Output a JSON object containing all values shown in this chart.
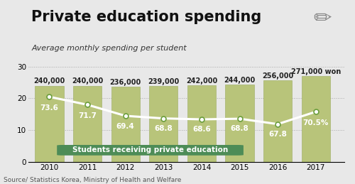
{
  "years": [
    2010,
    2011,
    2012,
    2013,
    2014,
    2015,
    2016,
    2017
  ],
  "bar_values": [
    24.0,
    24.0,
    23.6,
    23.9,
    24.2,
    24.4,
    25.6,
    27.1
  ],
  "bar_labels": [
    "240,000",
    "240,000",
    "236,000",
    "239,000",
    "242,000",
    "244,000",
    "256,000",
    "271,000 won"
  ],
  "line_values": [
    20.5,
    18.0,
    14.5,
    13.7,
    13.4,
    13.6,
    11.9,
    15.8
  ],
  "line_labels": [
    "73.6",
    "71.7",
    "69.4",
    "68.8",
    "68.6",
    "68.8",
    "67.8",
    "70.5%"
  ],
  "bar_color": "#b8c47a",
  "bar_edge_color": "#9aab5e",
  "line_color": "#ffffff",
  "line_marker_facecolor": "#ffffff",
  "line_marker_edgecolor": "#6b9e3c",
  "title": "Private education spending",
  "subtitle": "Average monthly spending per student",
  "legend_label": "Students receiving private education",
  "legend_bg": "#4d8c57",
  "source": "Source/ Statistics Korea, Ministry of Health and Welfare",
  "bg_color": "#e8e8e8",
  "ylim": [
    0,
    32
  ],
  "yticks": [
    0,
    10,
    20,
    30
  ],
  "title_fontsize": 15,
  "subtitle_fontsize": 8,
  "bar_label_fontsize": 7,
  "line_label_fontsize": 7.5,
  "tick_fontsize": 7.5,
  "source_fontsize": 6.5
}
